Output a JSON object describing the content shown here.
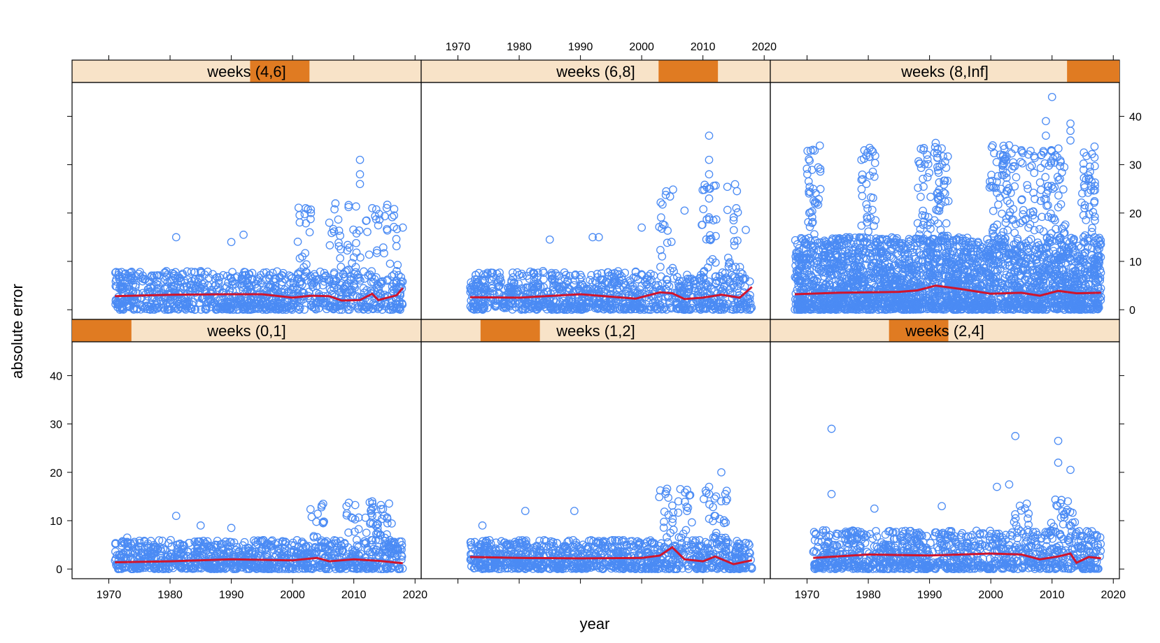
{
  "chart_data": {
    "type": "scatter",
    "xlabel": "year",
    "ylabel": "absolute error",
    "xlim": [
      1964,
      2021
    ],
    "ylim": [
      -2,
      47
    ],
    "x_ticks": [
      1970,
      1980,
      1990,
      2000,
      2010,
      2020
    ],
    "y_ticks": [
      0,
      10,
      20,
      30,
      40
    ],
    "point_color": "#4b8bf4",
    "line_color": "#d0142c",
    "strip_bg": "#f8e3c8",
    "strip_fill": "#e07b22",
    "panels": [
      {
        "label": "weeks (0,1]",
        "row": 1,
        "col": 0,
        "strip_range": [
          0,
          0.17
        ],
        "x_range": [
          1971,
          2018
        ],
        "base_max": 6,
        "spike_max": 14,
        "spike_years": [
          2004,
          2010,
          2013,
          2015
        ],
        "smooth": [
          [
            1971,
            1.4
          ],
          [
            1980,
            1.6
          ],
          [
            1990,
            2.0
          ],
          [
            2000,
            1.8
          ],
          [
            2004,
            2.3
          ],
          [
            2006,
            1.6
          ],
          [
            2010,
            2.0
          ],
          [
            2014,
            1.7
          ],
          [
            2018,
            1.2
          ]
        ],
        "outliers": [
          [
            1973,
            6.5
          ],
          [
            1981,
            11
          ],
          [
            1985,
            9
          ],
          [
            1990,
            8.5
          ],
          [
            2005,
            13.5
          ],
          [
            2013,
            14
          ],
          [
            2015,
            11
          ]
        ]
      },
      {
        "label": "weeks (1,2]",
        "row": 1,
        "col": 1,
        "strip_range": [
          0.17,
          0.34
        ],
        "x_range": [
          1972,
          2018
        ],
        "base_max": 6,
        "spike_max": 17,
        "spike_years": [
          2004,
          2007,
          2011,
          2013
        ],
        "smooth": [
          [
            1972,
            2.5
          ],
          [
            1980,
            2.3
          ],
          [
            1990,
            2.2
          ],
          [
            2000,
            2.3
          ],
          [
            2003,
            2.8
          ],
          [
            2005,
            4.5
          ],
          [
            2007,
            2.0
          ],
          [
            2010,
            1.6
          ],
          [
            2012,
            2.6
          ],
          [
            2015,
            1.0
          ],
          [
            2018,
            1.8
          ]
        ],
        "outliers": [
          [
            1974,
            9
          ],
          [
            1981,
            12
          ],
          [
            1989,
            12
          ],
          [
            2011,
            17
          ],
          [
            2013,
            20
          ],
          [
            2006,
            14
          ],
          [
            2011,
            15.5
          ]
        ]
      },
      {
        "label": "weeks (2,4]",
        "row": 1,
        "col": 2,
        "strip_range": [
          0.34,
          0.51
        ],
        "x_range": [
          1971,
          2018
        ],
        "base_max": 8,
        "spike_max": 15,
        "spike_years": [
          2005,
          2011,
          2013
        ],
        "smooth": [
          [
            1971,
            2.3
          ],
          [
            1980,
            3.0
          ],
          [
            1990,
            2.8
          ],
          [
            2000,
            3.2
          ],
          [
            2005,
            3.0
          ],
          [
            2008,
            2.0
          ],
          [
            2011,
            2.6
          ],
          [
            2013,
            3.2
          ],
          [
            2014,
            1.3
          ],
          [
            2016,
            2.5
          ],
          [
            2018,
            2.2
          ]
        ],
        "outliers": [
          [
            1974,
            29
          ],
          [
            1974,
            15.5
          ],
          [
            2004,
            27.5
          ],
          [
            2011,
            26.5
          ],
          [
            2011,
            22
          ],
          [
            2013,
            20.5
          ],
          [
            2001,
            17
          ],
          [
            2003,
            17.5
          ],
          [
            1981,
            12.5
          ],
          [
            1992,
            13
          ]
        ]
      },
      {
        "label": "weeks (4,6]",
        "row": 0,
        "col": 0,
        "strip_range": [
          0.51,
          0.68
        ],
        "x_range": [
          1971,
          2018
        ],
        "base_max": 8,
        "spike_max": 22,
        "spike_years": [
          2002,
          2007,
          2010,
          2013,
          2016
        ],
        "smooth": [
          [
            1971,
            2.8
          ],
          [
            1980,
            3.1
          ],
          [
            1990,
            3.2
          ],
          [
            1995,
            3.2
          ],
          [
            2000,
            2.5
          ],
          [
            2003,
            2.9
          ],
          [
            2006,
            2.8
          ],
          [
            2008,
            1.9
          ],
          [
            2011,
            2.0
          ],
          [
            2013,
            3.3
          ],
          [
            2014,
            2.0
          ],
          [
            2017,
            3.0
          ],
          [
            2018,
            4.5
          ]
        ],
        "outliers": [
          [
            1981,
            15
          ],
          [
            1990,
            14
          ],
          [
            1992,
            15.5
          ],
          [
            2007,
            22
          ],
          [
            2011,
            31
          ],
          [
            2011,
            28
          ],
          [
            2011,
            26
          ],
          [
            2013,
            21
          ],
          [
            2003,
            20
          ],
          [
            2006,
            18
          ],
          [
            2018,
            17
          ]
        ]
      },
      {
        "label": "weeks (6,8]",
        "row": 0,
        "col": 1,
        "strip_range": [
          0.68,
          0.85
        ],
        "x_range": [
          1972,
          2018
        ],
        "base_max": 8,
        "spike_max": 26,
        "spike_years": [
          2004,
          2011,
          2015
        ],
        "smooth": [
          [
            1972,
            2.6
          ],
          [
            1980,
            2.5
          ],
          [
            1990,
            3.2
          ],
          [
            1999,
            2.3
          ],
          [
            2003,
            3.6
          ],
          [
            2005,
            3.4
          ],
          [
            2007,
            2.2
          ],
          [
            2010,
            2.5
          ],
          [
            2013,
            3.1
          ],
          [
            2016,
            2.5
          ],
          [
            2018,
            4.7
          ]
        ],
        "outliers": [
          [
            1985,
            14.5
          ],
          [
            1992,
            15
          ],
          [
            1993,
            15
          ],
          [
            2000,
            17
          ],
          [
            2004,
            24.5
          ],
          [
            2007,
            20.5
          ],
          [
            2011,
            36
          ],
          [
            2011,
            31
          ],
          [
            2011,
            28
          ],
          [
            2011,
            23
          ],
          [
            2015,
            18.5
          ],
          [
            2017,
            16.5
          ]
        ]
      },
      {
        "label": "weeks (8,Inf]",
        "row": 0,
        "col": 2,
        "strip_range": [
          0.85,
          1.0
        ],
        "x_range": [
          1968,
          2018
        ],
        "base_max": 15,
        "spike_max": 34,
        "spike_years": [
          1971,
          1980,
          1989,
          1992,
          2001,
          2003,
          2006,
          2009,
          2011,
          2016
        ],
        "smooth": [
          [
            1968,
            3.2
          ],
          [
            1975,
            3.5
          ],
          [
            1980,
            3.6
          ],
          [
            1985,
            3.7
          ],
          [
            1988,
            4.0
          ],
          [
            1991,
            5.0
          ],
          [
            1995,
            4.3
          ],
          [
            2000,
            3.3
          ],
          [
            2005,
            3.5
          ],
          [
            2008,
            2.9
          ],
          [
            2011,
            3.9
          ],
          [
            2014,
            3.4
          ],
          [
            2018,
            3.5
          ]
        ],
        "outliers": [
          [
            2010,
            44
          ],
          [
            2009,
            39
          ],
          [
            2009,
            36
          ],
          [
            2013,
            38.5
          ],
          [
            2013,
            37
          ],
          [
            2013,
            35
          ],
          [
            1991,
            34.5
          ],
          [
            1989,
            33
          ],
          [
            2005,
            33
          ],
          [
            2002,
            32
          ],
          [
            2012,
            29.5
          ],
          [
            1981,
            27.5
          ],
          [
            2016,
            27
          ],
          [
            1971,
            25
          ],
          [
            1992,
            30
          ]
        ]
      }
    ]
  }
}
